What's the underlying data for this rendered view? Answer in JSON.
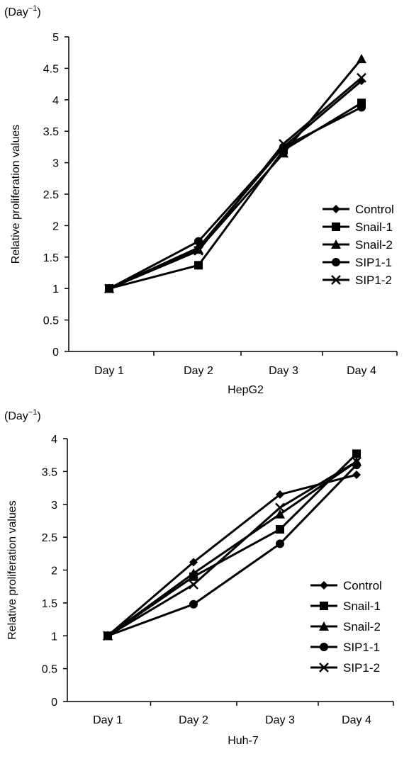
{
  "chart_data": [
    {
      "type": "line",
      "unit_label_base": "(Day",
      "unit_label_exp": "−1",
      "unit_label_close": ")",
      "xlabel": "HepG2",
      "ylabel": "Relative proliferation values",
      "categories": [
        "Day 1",
        "Day 2",
        "Day 3",
        "Day 4"
      ],
      "ylim": [
        0,
        5
      ],
      "yticks": [
        "0",
        "0.5",
        "1",
        "1.5",
        "2",
        "2.5",
        "3",
        "3.5",
        "4",
        "4.5",
        "5"
      ],
      "grid": false,
      "legend_position": "right",
      "series": [
        {
          "name": "Control",
          "marker": "diamond",
          "values": [
            1.0,
            1.65,
            3.25,
            4.3
          ]
        },
        {
          "name": "Snail-1",
          "marker": "square",
          "values": [
            1.0,
            1.37,
            3.2,
            3.95
          ]
        },
        {
          "name": "Snail-2",
          "marker": "triangle",
          "values": [
            1.0,
            1.62,
            3.15,
            4.65
          ]
        },
        {
          "name": "SIP1-1",
          "marker": "circle",
          "values": [
            1.0,
            1.75,
            3.25,
            3.88
          ]
        },
        {
          "name": "SIP1-2",
          "marker": "x",
          "values": [
            1.0,
            1.6,
            3.3,
            4.35
          ]
        }
      ]
    },
    {
      "type": "line",
      "unit_label_base": "(Day",
      "unit_label_exp": "−1",
      "unit_label_close": ")",
      "xlabel": "Huh-7",
      "ylabel": "Relative proliferation values",
      "categories": [
        "Day 1",
        "Day 2",
        "Day 3",
        "Day 4"
      ],
      "ylim": [
        0,
        4
      ],
      "yticks": [
        "0",
        "0.5",
        "1",
        "1.5",
        "2",
        "2.5",
        "3",
        "3.5",
        "4"
      ],
      "grid": false,
      "legend_position": "right",
      "series": [
        {
          "name": "Control",
          "marker": "diamond",
          "values": [
            1.0,
            2.12,
            3.15,
            3.45
          ]
        },
        {
          "name": "Snail-1",
          "marker": "square",
          "values": [
            1.0,
            1.9,
            2.62,
            3.77
          ]
        },
        {
          "name": "Snail-2",
          "marker": "triangle",
          "values": [
            1.0,
            1.95,
            2.85,
            3.65
          ]
        },
        {
          "name": "SIP1-1",
          "marker": "circle",
          "values": [
            1.0,
            1.48,
            2.4,
            3.6
          ]
        },
        {
          "name": "SIP1-2",
          "marker": "x",
          "values": [
            1.0,
            1.78,
            2.95,
            3.65
          ]
        }
      ]
    }
  ]
}
